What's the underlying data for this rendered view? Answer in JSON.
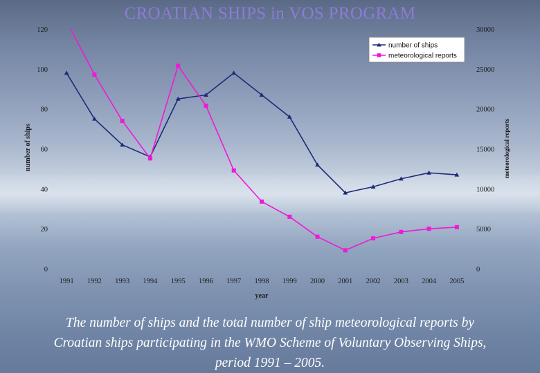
{
  "title": "CROATIAN SHIPS in VOS PROGRAM",
  "caption": "The number of ships and the total number of ship meteorological reports by Croatian ships participating in the WMO Scheme of Voluntary Observing Ships, period 1991 – 2005.",
  "chart_data": {
    "type": "line",
    "title": "CROATIAN SHIPS in VOS PROGRAM",
    "xlabel": "year",
    "ylabel_left": "number of ships",
    "ylabel_right": "meteorological reports",
    "categories": [
      "1991",
      "1992",
      "1993",
      "1994",
      "1995",
      "1996",
      "1997",
      "1998",
      "1999",
      "2000",
      "2001",
      "2002",
      "2003",
      "2004",
      "2005"
    ],
    "ylim_left": [
      0,
      120
    ],
    "yticks_left": [
      0,
      20,
      40,
      60,
      80,
      100,
      120
    ],
    "ylim_right": [
      0,
      30000
    ],
    "yticks_right": [
      0,
      5000,
      10000,
      15000,
      20000,
      25000,
      30000
    ],
    "legend_position": "top-right",
    "grid": false,
    "series": [
      {
        "name": "number of ships",
        "axis": "left",
        "color": "#1c2a7a",
        "marker": "triangle",
        "values": [
          98,
          75,
          62,
          56,
          85,
          87,
          98,
          87,
          76,
          52,
          38,
          41,
          45,
          48,
          47
        ]
      },
      {
        "name": "meteorological reports",
        "axis": "right",
        "color": "#ee1ad6",
        "marker": "square",
        "values": [
          31000,
          24300,
          18500,
          13800,
          25400,
          20400,
          12300,
          8400,
          6500,
          4000,
          2300,
          3800,
          4600,
          5000,
          5200
        ]
      }
    ]
  }
}
